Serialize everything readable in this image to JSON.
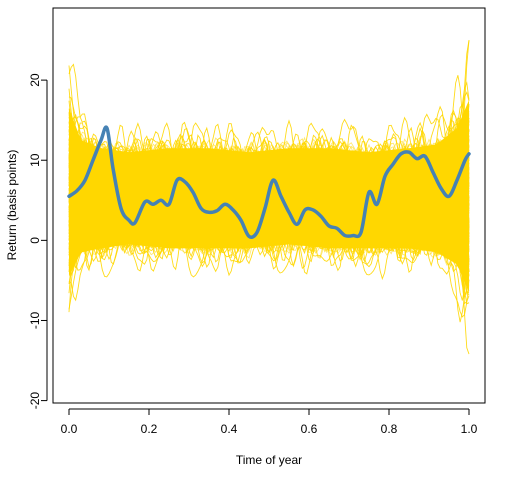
{
  "chart_data": {
    "type": "line",
    "title": "",
    "xlabel": "Time of year",
    "ylabel": "Return (basis points)",
    "xlim": [
      -0.04,
      1.04
    ],
    "ylim": [
      -20.3,
      29.0
    ],
    "x_ticks": [
      0.0,
      0.2,
      0.4,
      0.6,
      0.8,
      1.0
    ],
    "x_tick_labels": [
      "0.0",
      "0.2",
      "0.4",
      "0.6",
      "0.8",
      "1.0"
    ],
    "y_ticks": [
      -20,
      -10,
      0,
      10,
      20
    ],
    "y_tick_labels": [
      "-20",
      "-10",
      "0",
      "10",
      "20"
    ],
    "grid": false,
    "legend": "none",
    "series": [
      {
        "role": "bootstrap-band",
        "color": "#FFD700",
        "x": [
          0.0,
          0.03,
          0.08,
          0.15,
          0.25,
          0.35,
          0.45,
          0.55,
          0.65,
          0.75,
          0.85,
          0.92,
          0.97,
          1.0
        ],
        "upper": [
          26.0,
          18.0,
          16.0,
          15.0,
          15.5,
          16.0,
          15.0,
          15.5,
          16.0,
          15.0,
          16.0,
          17.0,
          21.0,
          28.0
        ],
        "lower": [
          -14.5,
          -8.0,
          -6.0,
          -5.5,
          -6.0,
          -6.0,
          -6.0,
          -5.5,
          -6.0,
          -6.0,
          -6.0,
          -6.5,
          -10.0,
          -19.0
        ],
        "core_upper": [
          18.0,
          14.0,
          13.0,
          12.5,
          13.0,
          13.0,
          12.5,
          13.0,
          13.0,
          12.5,
          13.0,
          13.5,
          15.5,
          19.0
        ],
        "core_lower": [
          -6.0,
          -3.0,
          -2.5,
          -2.0,
          -2.5,
          -2.5,
          -2.5,
          -2.0,
          -2.5,
          -2.5,
          -2.5,
          -3.0,
          -4.5,
          -8.0
        ]
      },
      {
        "role": "mean-curve",
        "color": "#4682B4",
        "x": [
          0.0,
          0.02,
          0.04,
          0.06,
          0.08,
          0.095,
          0.11,
          0.13,
          0.15,
          0.165,
          0.19,
          0.21,
          0.23,
          0.25,
          0.27,
          0.29,
          0.31,
          0.33,
          0.35,
          0.37,
          0.39,
          0.41,
          0.43,
          0.45,
          0.47,
          0.49,
          0.51,
          0.53,
          0.55,
          0.57,
          0.59,
          0.61,
          0.63,
          0.65,
          0.67,
          0.69,
          0.71,
          0.73,
          0.75,
          0.77,
          0.79,
          0.81,
          0.83,
          0.85,
          0.87,
          0.89,
          0.91,
          0.93,
          0.95,
          0.97,
          0.99,
          1.0
        ],
        "y": [
          5.5,
          6.2,
          7.5,
          10.0,
          12.5,
          14.0,
          9.0,
          4.0,
          2.5,
          2.2,
          4.8,
          4.5,
          5.0,
          4.5,
          7.5,
          7.3,
          6.0,
          4.0,
          3.5,
          3.7,
          4.5,
          3.8,
          2.5,
          0.5,
          1.0,
          4.0,
          7.5,
          5.5,
          3.5,
          2.0,
          3.8,
          3.8,
          3.0,
          1.8,
          1.5,
          0.6,
          0.6,
          1.0,
          6.0,
          4.5,
          8.0,
          9.5,
          10.8,
          11.0,
          10.2,
          10.5,
          8.5,
          6.5,
          5.5,
          7.5,
          10.0,
          10.8
        ]
      }
    ]
  }
}
